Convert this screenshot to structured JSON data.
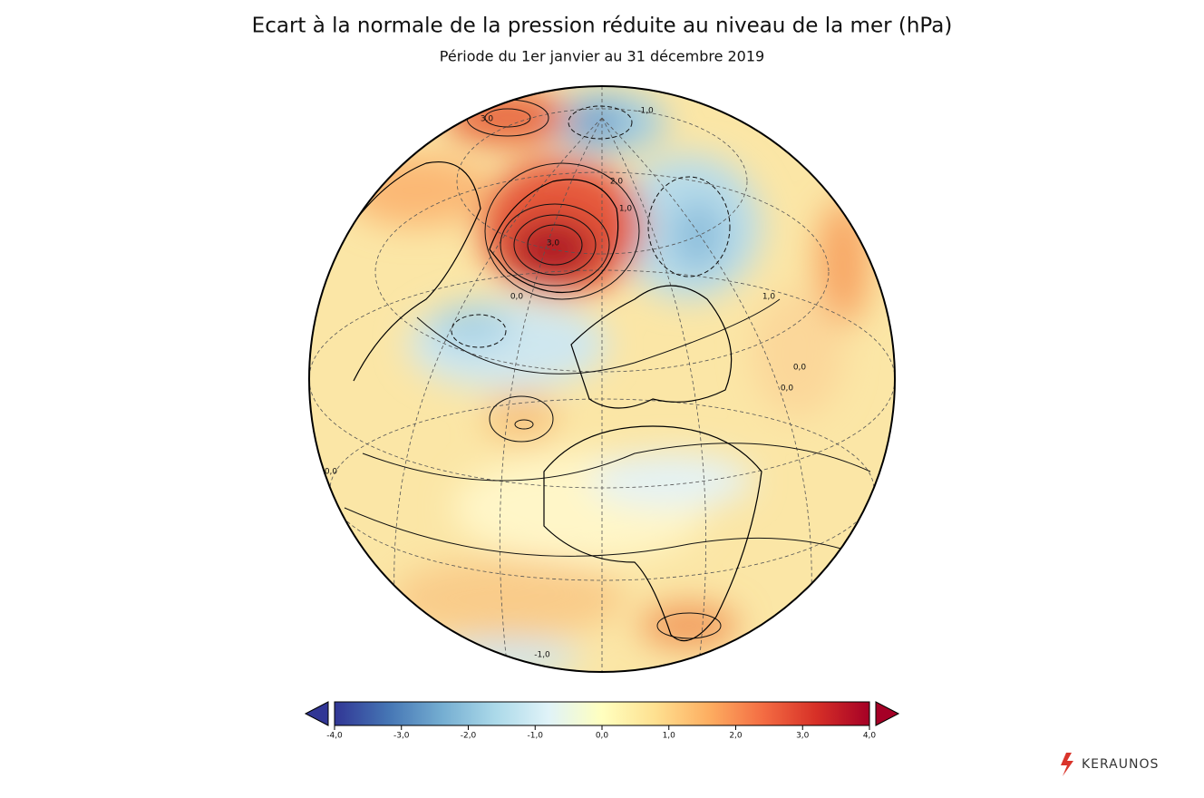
{
  "header": {
    "title": "Ecart à la normale de la pression réduite au niveau de la mer (hPa)",
    "subtitle": "Période du 1er janvier au 31 décembre 2019"
  },
  "map": {
    "contour_labels": [
      "3,0",
      "3,0",
      "2,0",
      "1,0",
      "0,0",
      "-1,0",
      "1,0",
      "0,0",
      "0,0",
      "-1,0",
      "0,0"
    ]
  },
  "colorbar": {
    "lim": [
      -4,
      4
    ],
    "ticks": [
      {
        "value": -4,
        "label": "-4,0"
      },
      {
        "value": -3,
        "label": "-3,0"
      },
      {
        "value": -2,
        "label": "-2,0"
      },
      {
        "value": -1,
        "label": "-1,0"
      },
      {
        "value": 0,
        "label": "0,0"
      },
      {
        "value": 1,
        "label": "1,0"
      },
      {
        "value": 2,
        "label": "2,0"
      },
      {
        "value": 3,
        "label": "3,0"
      },
      {
        "value": 4,
        "label": "4,0"
      }
    ],
    "colors": [
      "#313695",
      "#4575b4",
      "#74add1",
      "#abd9e9",
      "#e0f3f8",
      "#ffffbf",
      "#fee090",
      "#fdae61",
      "#f46d43",
      "#d73027",
      "#a50026"
    ]
  },
  "brand": "KERAUNOS"
}
